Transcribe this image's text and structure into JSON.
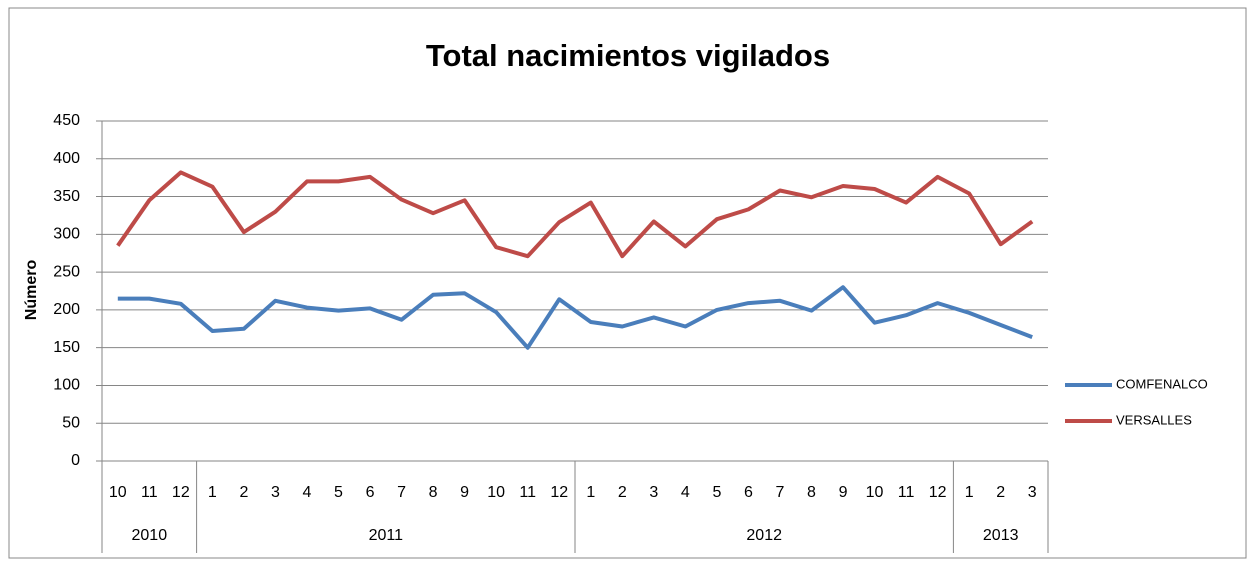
{
  "chart_data": {
    "type": "line",
    "title": "Total nacimientos vigilados",
    "ylabel": "Número",
    "groups": [
      {
        "name": "2010",
        "categories": [
          "10",
          "11",
          "12"
        ]
      },
      {
        "name": "2011",
        "categories": [
          "1",
          "2",
          "3",
          "4",
          "5",
          "6",
          "7",
          "8",
          "9",
          "10",
          "11",
          "12"
        ]
      },
      {
        "name": "2012",
        "categories": [
          "1",
          "2",
          "3",
          "4",
          "5",
          "6",
          "7",
          "8",
          "9",
          "10",
          "11",
          "12"
        ]
      },
      {
        "name": "2013",
        "categories": [
          "1",
          "2",
          "3"
        ]
      }
    ],
    "series": [
      {
        "name": "COMFENALCO",
        "color": "#4a7ebb",
        "values": [
          215,
          215,
          208,
          172,
          175,
          212,
          203,
          199,
          202,
          187,
          220,
          222,
          197,
          150,
          214,
          184,
          178,
          190,
          178,
          200,
          209,
          212,
          199,
          230,
          183,
          193,
          209,
          196,
          180,
          164
        ]
      },
      {
        "name": "VERSALLES",
        "color": "#be4b48",
        "values": [
          285,
          345,
          382,
          363,
          303,
          330,
          370,
          370,
          376,
          346,
          328,
          345,
          283,
          271,
          316,
          342,
          271,
          317,
          284,
          320,
          333,
          358,
          349,
          364,
          360,
          342,
          376,
          354,
          287,
          317
        ]
      }
    ],
    "ylim": [
      0,
      450
    ],
    "yticks": [
      0,
      50,
      100,
      150,
      200,
      250,
      300,
      350,
      400,
      450
    ],
    "grid": true,
    "legend": "right"
  }
}
